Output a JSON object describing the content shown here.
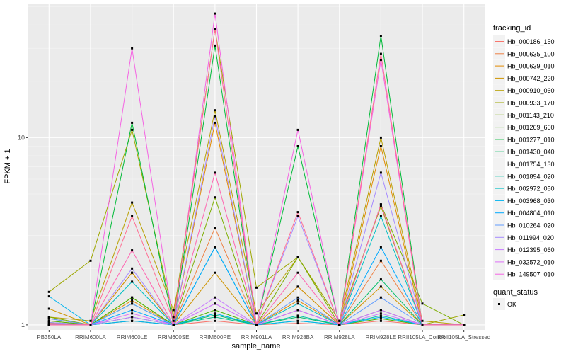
{
  "chart_data": {
    "type": "line",
    "xlabel": "sample_name",
    "ylabel": "FPKM + 1",
    "y_scale": "log10",
    "ylim": [
      0.94,
      52
    ],
    "y_ticks": [
      {
        "value": 1,
        "label": "1"
      },
      {
        "value": 10,
        "label": "10"
      }
    ],
    "categories": [
      "PB350LA",
      "RRIM600LA",
      "RRIM600LE",
      "RRIM600SE",
      "RRIM600PE",
      "RRIM901LA",
      "RRIM928BA",
      "RRIM928LA",
      "RRIM928LE",
      "RRII105LA_Control",
      "RRII105LA_Stressed"
    ],
    "grid": true,
    "legend": {
      "title": "tracking_id",
      "position": "right",
      "marker_title": "quant_status",
      "marker_label": "OK"
    },
    "series": [
      {
        "name": "Hb_000186_150",
        "color": "#F8766D",
        "values": [
          1.02,
          1.0,
          1.05,
          1.0,
          1.05,
          1.0,
          1.02,
          1.0,
          1.05,
          1.0,
          1.0
        ]
      },
      {
        "name": "Hb_000635_100",
        "color": "#EE8043",
        "values": [
          1.05,
          1.0,
          1.9,
          1.0,
          3.3,
          1.0,
          1.6,
          1.0,
          2.2,
          1.0,
          1.0
        ]
      },
      {
        "name": "Hb_000639_010",
        "color": "#E18A00",
        "values": [
          1.08,
          1.0,
          1.35,
          1.0,
          12.0,
          1.0,
          1.35,
          1.0,
          9.0,
          1.0,
          1.0
        ]
      },
      {
        "name": "Hb_000742_220",
        "color": "#CF9400",
        "values": [
          1.22,
          1.0,
          1.9,
          1.0,
          1.9,
          1.0,
          1.6,
          1.0,
          1.6,
          1.0,
          1.0
        ]
      },
      {
        "name": "Hb_000910_060",
        "color": "#B79F00",
        "values": [
          1.1,
          1.05,
          4.5,
          1.2,
          14.0,
          1.15,
          2.3,
          1.05,
          10.0,
          1.05,
          1.0
        ]
      },
      {
        "name": "Hb_000933_170",
        "color": "#9DA700",
        "values": [
          1.5,
          2.2,
          11.0,
          1.1,
          38.0,
          1.58,
          2.3,
          1.05,
          4.3,
          1.0,
          1.13
        ]
      },
      {
        "name": "Hb_001143_210",
        "color": "#7CAE00",
        "values": [
          1.1,
          1.0,
          1.4,
          1.0,
          4.8,
          1.0,
          2.3,
          1.0,
          4.4,
          1.3,
          1.0
        ]
      },
      {
        "name": "Hb_001269_660",
        "color": "#49B500",
        "values": [
          1.05,
          1.0,
          1.4,
          1.0,
          1.2,
          1.0,
          1.2,
          1.0,
          1.08,
          1.0,
          1.0
        ]
      },
      {
        "name": "Hb_001277_010",
        "color": "#00BA38",
        "values": [
          1.03,
          1.0,
          12.0,
          1.0,
          31.0,
          1.0,
          9.0,
          1.0,
          35.0,
          1.0,
          1.0
        ]
      },
      {
        "name": "Hb_001430_040",
        "color": "#00BE67",
        "values": [
          1.0,
          1.0,
          1.3,
          1.0,
          1.13,
          1.0,
          1.1,
          1.0,
          1.75,
          1.0,
          1.0
        ]
      },
      {
        "name": "Hb_001754_130",
        "color": "#00C08B",
        "values": [
          1.0,
          1.0,
          1.1,
          1.0,
          1.1,
          1.0,
          1.05,
          1.0,
          1.2,
          1.0,
          1.0
        ]
      },
      {
        "name": "Hb_001894_020",
        "color": "#00C1A9",
        "values": [
          1.0,
          1.0,
          1.05,
          1.0,
          1.15,
          1.0,
          1.12,
          1.0,
          1.12,
          1.0,
          1.0
        ]
      },
      {
        "name": "Hb_002972_050",
        "color": "#00BFC4",
        "values": [
          1.0,
          1.0,
          1.7,
          1.0,
          2.6,
          1.0,
          1.3,
          1.0,
          3.8,
          1.0,
          1.0
        ]
      },
      {
        "name": "Hb_003968_030",
        "color": "#00B4EF",
        "values": [
          1.42,
          1.0,
          1.05,
          1.0,
          1.15,
          1.0,
          1.05,
          1.0,
          1.1,
          1.0,
          1.0
        ]
      },
      {
        "name": "Hb_004804_010",
        "color": "#00A9FF",
        "values": [
          1.0,
          1.0,
          1.2,
          1.0,
          2.6,
          1.0,
          1.2,
          1.0,
          2.6,
          1.0,
          1.0
        ]
      },
      {
        "name": "Hb_010264_020",
        "color": "#619CFF",
        "values": [
          1.08,
          1.0,
          1.3,
          1.0,
          1.3,
          1.0,
          1.4,
          1.0,
          1.4,
          1.0,
          1.0
        ]
      },
      {
        "name": "Hb_011994_020",
        "color": "#A58AFF",
        "values": [
          1.03,
          1.0,
          2.0,
          1.0,
          13.0,
          1.0,
          3.8,
          1.0,
          6.5,
          1.0,
          1.0
        ]
      },
      {
        "name": "Hb_012395_060",
        "color": "#C77CFF",
        "values": [
          1.0,
          1.0,
          1.1,
          1.0,
          1.4,
          1.0,
          1.2,
          1.0,
          1.15,
          1.0,
          1.0
        ]
      },
      {
        "name": "Hb_032572_010",
        "color": "#DF70F8",
        "values": [
          1.0,
          1.0,
          1.15,
          1.0,
          1.3,
          1.0,
          1.2,
          1.0,
          1.2,
          1.0,
          1.0
        ]
      },
      {
        "name": "Hb_149507_010",
        "color": "#F564E3",
        "values": [
          1.0,
          1.0,
          30.0,
          1.0,
          46.0,
          1.0,
          11.0,
          1.0,
          26.0,
          1.0,
          1.0
        ]
      },
      {
        "name": "",
        "color": "#FF64B0",
        "values": [
          1.0,
          1.0,
          2.5,
          1.0,
          6.5,
          1.0,
          1.9,
          1.0,
          4.4,
          1.0,
          1.0
        ]
      },
      {
        "name": "",
        "color": "#FF6C91",
        "values": [
          1.0,
          1.0,
          3.8,
          1.05,
          38.0,
          1.0,
          4.0,
          1.0,
          28.0,
          1.0,
          1.0
        ]
      }
    ]
  }
}
